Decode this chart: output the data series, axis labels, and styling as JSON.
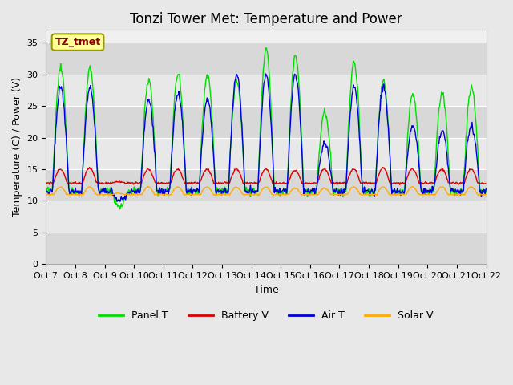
{
  "title": "Tonzi Tower Met: Temperature and Power",
  "xlabel": "Time",
  "ylabel": "Temperature (C) / Power (V)",
  "ylim": [
    0,
    37
  ],
  "yticks": [
    0,
    5,
    10,
    15,
    20,
    25,
    30,
    35
  ],
  "x_labels": [
    "Oct 7",
    "Oct 8",
    "Oct 9",
    "Oct 10",
    "Oct 11",
    "Oct 12",
    "Oct 13",
    "Oct 14",
    "Oct 15",
    "Oct 16",
    "Oct 17",
    "Oct 18",
    "Oct 19",
    "Oct 20",
    "Oct 21",
    "Oct 22"
  ],
  "annotation_text": "TZ_tmet",
  "annotation_bbox_facecolor": "#ffff99",
  "annotation_bbox_edgecolor": "#999900",
  "annotation_text_color": "#880000",
  "colors": {
    "panel_t": "#00dd00",
    "battery_v": "#dd0000",
    "air_t": "#0000dd",
    "solar_v": "#ffaa00"
  },
  "legend_labels": [
    "Panel T",
    "Battery V",
    "Air T",
    "Solar V"
  ],
  "fig_facecolor": "#e8e8e8",
  "plot_facecolor": "#f0f0f0",
  "band_color_dark": "#d8d8d8",
  "grid_color": "#ffffff",
  "title_fontsize": 12,
  "axis_fontsize": 9,
  "tick_fontsize": 8
}
